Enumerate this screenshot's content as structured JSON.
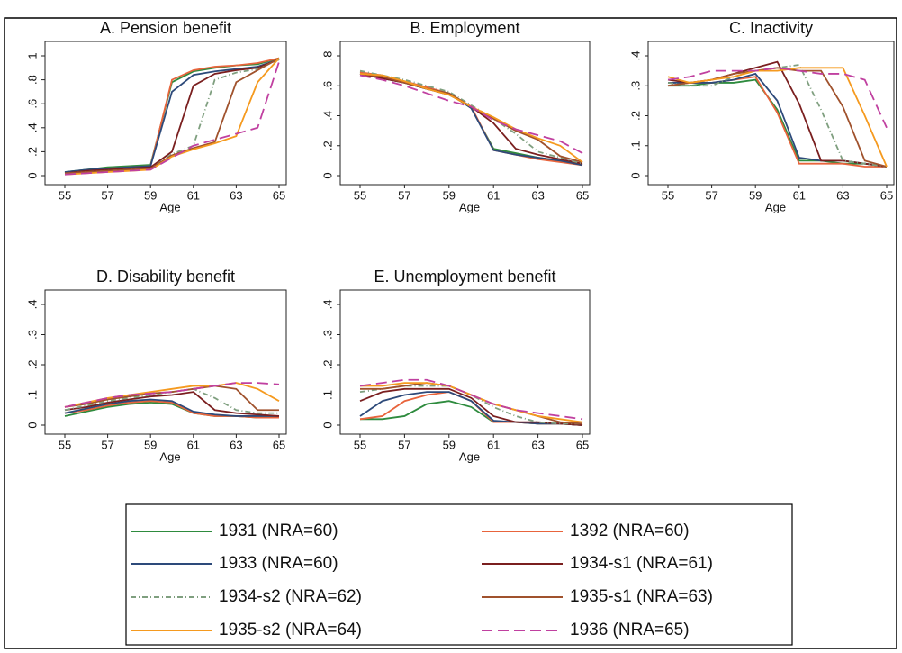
{
  "chart_data": [
    {
      "type": "line",
      "title": "A. Pension benefit",
      "xlabel": "Age",
      "x": [
        55,
        56,
        57,
        58,
        59,
        60,
        61,
        62,
        63,
        64,
        65
      ],
      "xlim": [
        55,
        65
      ],
      "xticks": [
        55,
        57,
        59,
        61,
        63,
        65
      ],
      "ylim": [
        0,
        1
      ],
      "yticks": [
        0,
        {
          "value": 0.2,
          "label": ".2"
        },
        {
          "value": 0.4,
          "label": ".4"
        },
        {
          "value": 0.6,
          "label": ".6"
        },
        {
          "value": 0.8,
          "label": ".8"
        },
        1
      ],
      "series": [
        {
          "name": "1931 (NRA=60)",
          "color": "#2e8b3e",
          "dash": "none",
          "values": [
            0.03,
            0.05,
            0.07,
            0.08,
            0.09,
            0.78,
            0.87,
            0.9,
            0.92,
            0.93,
            0.98
          ]
        },
        {
          "name": "1392 (NRA=60)",
          "color": "#e8643c",
          "dash": "none",
          "values": [
            0.02,
            0.04,
            0.06,
            0.07,
            0.08,
            0.8,
            0.88,
            0.91,
            0.92,
            0.94,
            0.98
          ]
        },
        {
          "name": "1933 (NRA=60)",
          "color": "#2d4a7a",
          "dash": "none",
          "values": [
            0.03,
            0.05,
            0.06,
            0.07,
            0.08,
            0.7,
            0.84,
            0.87,
            0.89,
            0.91,
            0.97
          ]
        },
        {
          "name": "1934-s1 (NRA=61)",
          "color": "#7a1f1f",
          "dash": "none",
          "values": [
            0.02,
            0.04,
            0.05,
            0.06,
            0.07,
            0.2,
            0.75,
            0.85,
            0.88,
            0.9,
            0.97
          ]
        },
        {
          "name": "1934-s2 (NRA=62)",
          "color": "#7f9f7f",
          "dash": "6 3 1 3",
          "values": [
            0.02,
            0.03,
            0.04,
            0.05,
            0.06,
            0.18,
            0.25,
            0.8,
            0.86,
            0.89,
            0.97
          ]
        },
        {
          "name": "1935-s1 (NRA=63)",
          "color": "#a0522d",
          "dash": "none",
          "values": [
            0.02,
            0.03,
            0.04,
            0.05,
            0.06,
            0.17,
            0.23,
            0.28,
            0.78,
            0.88,
            0.98
          ]
        },
        {
          "name": "1935-s2 (NRA=64)",
          "color": "#f59a1f",
          "dash": "none",
          "values": [
            0.01,
            0.02,
            0.03,
            0.04,
            0.05,
            0.16,
            0.22,
            0.27,
            0.33,
            0.78,
            0.98
          ]
        },
        {
          "name": "1936 (NRA=65)",
          "color": "#c040a0",
          "dash": "12 6",
          "values": [
            0.01,
            0.02,
            0.03,
            0.04,
            0.05,
            0.15,
            0.25,
            0.3,
            0.35,
            0.4,
            0.95
          ]
        }
      ]
    },
    {
      "type": "line",
      "title": "B. Employment",
      "xlabel": "Age",
      "x": [
        55,
        56,
        57,
        58,
        59,
        60,
        61,
        62,
        63,
        64,
        65
      ],
      "xlim": [
        55,
        65
      ],
      "xticks": [
        55,
        57,
        59,
        61,
        63,
        65
      ],
      "ylim": [
        0,
        0.8
      ],
      "yticks": [
        0,
        {
          "value": 0.2,
          "label": ".2"
        },
        {
          "value": 0.4,
          "label": ".4"
        },
        {
          "value": 0.6,
          "label": ".6"
        },
        {
          "value": 0.8,
          "label": ".8"
        }
      ],
      "series": [
        {
          "color": "#2e8b3e",
          "dash": "none",
          "values": [
            0.69,
            0.66,
            0.62,
            0.58,
            0.55,
            0.45,
            0.18,
            0.15,
            0.12,
            0.1,
            0.07
          ]
        },
        {
          "color": "#e8643c",
          "dash": "none",
          "values": [
            0.69,
            0.67,
            0.63,
            0.59,
            0.55,
            0.46,
            0.17,
            0.14,
            0.11,
            0.09,
            0.07
          ]
        },
        {
          "color": "#2d4a7a",
          "dash": "none",
          "values": [
            0.68,
            0.65,
            0.62,
            0.58,
            0.55,
            0.45,
            0.17,
            0.14,
            0.12,
            0.1,
            0.07
          ]
        },
        {
          "color": "#7a1f1f",
          "dash": "none",
          "values": [
            0.68,
            0.65,
            0.62,
            0.58,
            0.54,
            0.46,
            0.35,
            0.18,
            0.14,
            0.11,
            0.08
          ]
        },
        {
          "color": "#7f9f7f",
          "dash": "6 3 1 3",
          "values": [
            0.7,
            0.67,
            0.64,
            0.6,
            0.56,
            0.47,
            0.38,
            0.28,
            0.16,
            0.12,
            0.08
          ]
        },
        {
          "color": "#a0522d",
          "dash": "none",
          "values": [
            0.68,
            0.66,
            0.62,
            0.58,
            0.55,
            0.46,
            0.38,
            0.3,
            0.24,
            0.13,
            0.09
          ]
        },
        {
          "color": "#f59a1f",
          "dash": "none",
          "values": [
            0.68,
            0.67,
            0.63,
            0.58,
            0.54,
            0.46,
            0.39,
            0.31,
            0.25,
            0.2,
            0.09
          ]
        },
        {
          "color": "#c040a0",
          "dash": "12 6",
          "values": [
            0.67,
            0.64,
            0.6,
            0.55,
            0.5,
            0.46,
            0.37,
            0.31,
            0.27,
            0.23,
            0.15
          ]
        }
      ]
    },
    {
      "type": "line",
      "title": "C. Inactivity",
      "xlabel": "Age",
      "x": [
        55,
        56,
        57,
        58,
        59,
        60,
        61,
        62,
        63,
        64,
        65
      ],
      "xlim": [
        55,
        65
      ],
      "xticks": [
        55,
        57,
        59,
        61,
        63,
        65
      ],
      "ylim": [
        0,
        0.4
      ],
      "yticks": [
        0,
        {
          "value": 0.1,
          "label": ".1"
        },
        {
          "value": 0.2,
          "label": ".2"
        },
        {
          "value": 0.3,
          "label": ".3"
        },
        {
          "value": 0.4,
          "label": ".4"
        }
      ],
      "series": [
        {
          "color": "#2e8b3e",
          "dash": "none",
          "values": [
            0.3,
            0.3,
            0.31,
            0.31,
            0.32,
            0.22,
            0.05,
            0.05,
            0.04,
            0.04,
            0.03
          ]
        },
        {
          "color": "#e8643c",
          "dash": "none",
          "values": [
            0.3,
            0.31,
            0.31,
            0.32,
            0.33,
            0.21,
            0.04,
            0.04,
            0.04,
            0.03,
            0.03
          ]
        },
        {
          "color": "#2d4a7a",
          "dash": "none",
          "values": [
            0.31,
            0.31,
            0.31,
            0.32,
            0.34,
            0.25,
            0.06,
            0.05,
            0.05,
            0.04,
            0.03
          ]
        },
        {
          "color": "#7a1f1f",
          "dash": "none",
          "values": [
            0.32,
            0.31,
            0.32,
            0.34,
            0.36,
            0.38,
            0.24,
            0.05,
            0.05,
            0.04,
            0.03
          ]
        },
        {
          "color": "#7f9f7f",
          "dash": "6 3 1 3",
          "values": [
            0.31,
            0.3,
            0.3,
            0.33,
            0.35,
            0.36,
            0.37,
            0.22,
            0.05,
            0.04,
            0.03
          ]
        },
        {
          "color": "#a0522d",
          "dash": "none",
          "values": [
            0.3,
            0.31,
            0.32,
            0.34,
            0.35,
            0.36,
            0.35,
            0.35,
            0.23,
            0.05,
            0.03
          ]
        },
        {
          "color": "#f59a1f",
          "dash": "none",
          "values": [
            0.33,
            0.31,
            0.32,
            0.33,
            0.35,
            0.35,
            0.36,
            0.36,
            0.36,
            0.2,
            0.03
          ]
        },
        {
          "color": "#c040a0",
          "dash": "12 6",
          "values": [
            0.32,
            0.33,
            0.35,
            0.35,
            0.35,
            0.36,
            0.35,
            0.34,
            0.34,
            0.32,
            0.16
          ]
        }
      ]
    },
    {
      "type": "line",
      "title": "D. Disability benefit",
      "xlabel": "Age",
      "x": [
        55,
        56,
        57,
        58,
        59,
        60,
        61,
        62,
        63,
        64,
        65
      ],
      "xlim": [
        55,
        65
      ],
      "xticks": [
        55,
        57,
        59,
        61,
        63,
        65
      ],
      "ylim": [
        0,
        0.4
      ],
      "yticks": [
        0,
        {
          "value": 0.1,
          "label": ".1"
        },
        {
          "value": 0.2,
          "label": ".2"
        },
        {
          "value": 0.3,
          "label": ".3"
        },
        {
          "value": 0.4,
          "label": ".4"
        }
      ],
      "series": [
        {
          "color": "#2e8b3e",
          "dash": "none",
          "values": [
            0.03,
            0.045,
            0.06,
            0.07,
            0.075,
            0.07,
            0.04,
            0.03,
            0.03,
            0.025,
            0.025
          ]
        },
        {
          "color": "#e8643c",
          "dash": "none",
          "values": [
            0.04,
            0.05,
            0.065,
            0.075,
            0.08,
            0.075,
            0.04,
            0.03,
            0.03,
            0.025,
            0.025
          ]
        },
        {
          "color": "#2d4a7a",
          "dash": "none",
          "values": [
            0.04,
            0.055,
            0.07,
            0.08,
            0.085,
            0.08,
            0.045,
            0.035,
            0.03,
            0.03,
            0.03
          ]
        },
        {
          "color": "#7a1f1f",
          "dash": "none",
          "values": [
            0.05,
            0.06,
            0.075,
            0.085,
            0.095,
            0.1,
            0.11,
            0.05,
            0.04,
            0.035,
            0.03
          ]
        },
        {
          "color": "#7f9f7f",
          "dash": "6 3 1 3",
          "values": [
            0.05,
            0.065,
            0.08,
            0.09,
            0.1,
            0.11,
            0.12,
            0.09,
            0.05,
            0.04,
            0.04
          ]
        },
        {
          "color": "#a0522d",
          "dash": "none",
          "values": [
            0.06,
            0.07,
            0.085,
            0.095,
            0.105,
            0.11,
            0.12,
            0.13,
            0.12,
            0.05,
            0.05
          ]
        },
        {
          "color": "#f59a1f",
          "dash": "none",
          "values": [
            0.06,
            0.075,
            0.09,
            0.1,
            0.11,
            0.12,
            0.13,
            0.13,
            0.14,
            0.12,
            0.08
          ]
        },
        {
          "color": "#c040a0",
          "dash": "12 6",
          "values": [
            0.06,
            0.075,
            0.09,
            0.1,
            0.105,
            0.11,
            0.12,
            0.13,
            0.14,
            0.14,
            0.135
          ]
        }
      ]
    },
    {
      "type": "line",
      "title": "E. Unemployment benefit",
      "xlabel": "Age",
      "x": [
        55,
        56,
        57,
        58,
        59,
        60,
        61,
        62,
        63,
        64,
        65
      ],
      "xlim": [
        55,
        65
      ],
      "xticks": [
        55,
        57,
        59,
        61,
        63,
        65
      ],
      "ylim": [
        0,
        0.4
      ],
      "yticks": [
        0,
        {
          "value": 0.1,
          "label": ".1"
        },
        {
          "value": 0.2,
          "label": ".2"
        },
        {
          "value": 0.3,
          "label": ".3"
        },
        {
          "value": 0.4,
          "label": ".4"
        }
      ],
      "series": [
        {
          "color": "#2e8b3e",
          "dash": "none",
          "values": [
            0.02,
            0.02,
            0.03,
            0.07,
            0.08,
            0.06,
            0.01,
            0.01,
            0.005,
            0.005,
            0
          ]
        },
        {
          "color": "#e8643c",
          "dash": "none",
          "values": [
            0.02,
            0.03,
            0.08,
            0.1,
            0.11,
            0.08,
            0.01,
            0.01,
            0.005,
            0.005,
            0
          ]
        },
        {
          "color": "#2d4a7a",
          "dash": "none",
          "values": [
            0.03,
            0.08,
            0.1,
            0.11,
            0.11,
            0.08,
            0.015,
            0.01,
            0.005,
            0.005,
            0
          ]
        },
        {
          "color": "#7a1f1f",
          "dash": "none",
          "values": [
            0.08,
            0.11,
            0.12,
            0.12,
            0.12,
            0.09,
            0.03,
            0.01,
            0.01,
            0.005,
            0
          ]
        },
        {
          "color": "#7f9f7f",
          "dash": "6 3 1 3",
          "values": [
            0.11,
            0.12,
            0.13,
            0.13,
            0.13,
            0.1,
            0.06,
            0.03,
            0.01,
            0.005,
            0.005
          ]
        },
        {
          "color": "#a0522d",
          "dash": "none",
          "values": [
            0.12,
            0.12,
            0.13,
            0.14,
            0.13,
            0.1,
            0.07,
            0.05,
            0.03,
            0.01,
            0.005
          ]
        },
        {
          "color": "#f59a1f",
          "dash": "none",
          "values": [
            0.13,
            0.13,
            0.14,
            0.14,
            0.13,
            0.1,
            0.07,
            0.05,
            0.03,
            0.02,
            0.01
          ]
        },
        {
          "color": "#c040a0",
          "dash": "12 6",
          "values": [
            0.13,
            0.14,
            0.15,
            0.15,
            0.13,
            0.1,
            0.07,
            0.05,
            0.04,
            0.03,
            0.02
          ]
        }
      ]
    }
  ]
}
